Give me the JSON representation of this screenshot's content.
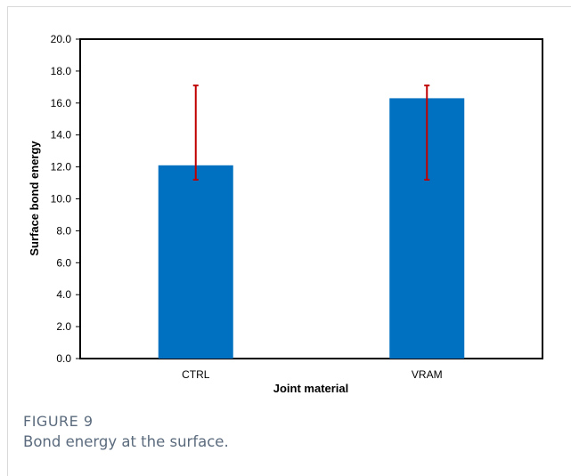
{
  "figure": {
    "label": "FIGURE 9",
    "caption": "Bond energy at the surface."
  },
  "chart_data": {
    "type": "bar",
    "title": "",
    "xlabel": "Joint material",
    "ylabel": "Surface bond energy",
    "categories": [
      "CTRL",
      "VRAM"
    ],
    "values": [
      12.1,
      16.3
    ],
    "error_low": [
      11.2,
      11.2
    ],
    "error_high": [
      17.1,
      17.1
    ],
    "ylim": [
      0,
      20
    ],
    "yticks": [
      0,
      2,
      4,
      6,
      8,
      10,
      12,
      14,
      16,
      18,
      20
    ],
    "ytick_labels": [
      "0.0",
      "2.0",
      "4.0",
      "6.0",
      "8.0",
      "10.0",
      "12.0",
      "14.0",
      "16.0",
      "18.0",
      "20.0"
    ],
    "grid": false,
    "legend": "none",
    "colors": {
      "bar": "#0070c0",
      "error_bar": "#c00000",
      "axis": "#000000"
    }
  }
}
